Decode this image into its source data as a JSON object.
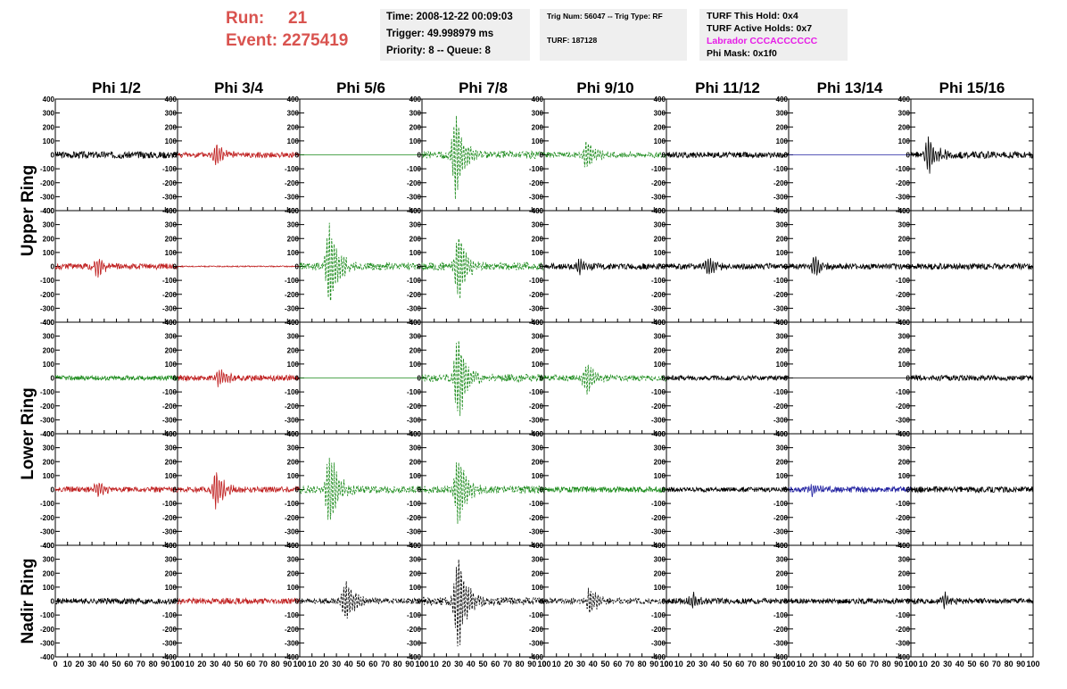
{
  "header": {
    "run_label": "Run:",
    "run_value": "21",
    "event_label": "Event:",
    "event_value": "2275419",
    "time": "Time: 2008-12-22 00:09:03",
    "trigger": "Trigger: 49.998979 ms",
    "priority": "Priority: 8 -- Queue: 8",
    "trig_num": "Trig Num: 56047 -- Trig Type: RF",
    "turf": "TURF: 187128",
    "turf_hold": "TURF This Hold: 0x4",
    "turf_active": "TURF Active Holds: 0x7",
    "labrador": "Labrador CCCACCCCCC",
    "phi_mask": "Phi Mask: 0x1f0",
    "labrador_color": "#e61ce6",
    "run_color": "#d9534f"
  },
  "columns": [
    "Phi 1/2",
    "Phi 3/4",
    "Phi 5/6",
    "Phi 7/8",
    "Phi 9/10",
    "Phi 11/12",
    "Phi 13/14",
    "Phi 15/16"
  ],
  "row_labels": [
    "Upper Ring",
    "Lower Ring",
    "Nadir Ring"
  ],
  "chart_data": {
    "type": "line",
    "description_axes": "8 columns x 5 rows of waveform panels; x = sample 0-100, y = amplitude -400 to 400",
    "xlim": [
      0,
      100
    ],
    "ylim": [
      -400,
      400
    ],
    "x_ticks": [
      0,
      10,
      20,
      30,
      40,
      50,
      60,
      70,
      80,
      90,
      100
    ],
    "x_tick_labels": [
      "0",
      "10",
      "20",
      "30",
      "40",
      "50",
      "60",
      "70",
      "80",
      "90",
      "100"
    ],
    "y_ticks": [
      -400,
      -300,
      -200,
      -100,
      0,
      100,
      200,
      300,
      400
    ],
    "colors": {
      "black": "#000000",
      "red": "#c02020",
      "green": "#1a8a1a",
      "blue": "#2020a0"
    },
    "panels": [
      [
        {
          "color": "black",
          "dash": false,
          "amp": 18,
          "center": null,
          "peak": 0
        },
        {
          "color": "red",
          "dash": false,
          "amp": 14,
          "center": 32,
          "peak": 95
        },
        {
          "color": "green",
          "dash": false,
          "amp": 0,
          "center": null,
          "peak": 0
        },
        {
          "color": "green",
          "dash": true,
          "amp": 20,
          "center": 28,
          "peak": 360
        },
        {
          "color": "green",
          "dash": true,
          "amp": 15,
          "center": 35,
          "peak": 130
        },
        {
          "color": "black",
          "dash": false,
          "amp": 15,
          "center": null,
          "peak": 0
        },
        {
          "color": "blue",
          "dash": false,
          "amp": 0,
          "center": null,
          "peak": 0
        },
        {
          "color": "black",
          "dash": false,
          "amp": 18,
          "center": 15,
          "peak": 140
        }
      ],
      [
        {
          "color": "red",
          "dash": false,
          "amp": 15,
          "center": 35,
          "peak": 75
        },
        {
          "color": "red",
          "dash": false,
          "amp": 3,
          "center": null,
          "peak": 0
        },
        {
          "color": "green",
          "dash": true,
          "amp": 20,
          "center": 25,
          "peak": 360
        },
        {
          "color": "green",
          "dash": true,
          "amp": 20,
          "center": 30,
          "peak": 300
        },
        {
          "color": "black",
          "dash": false,
          "amp": 15,
          "center": 30,
          "peak": 55
        },
        {
          "color": "black",
          "dash": false,
          "amp": 15,
          "center": 35,
          "peak": 75
        },
        {
          "color": "black",
          "dash": false,
          "amp": 15,
          "center": 22,
          "peak": 80
        },
        {
          "color": "black",
          "dash": false,
          "amp": 15,
          "center": null,
          "peak": 0
        }
      ],
      [
        {
          "color": "green",
          "dash": false,
          "amp": 12,
          "center": null,
          "peak": 0
        },
        {
          "color": "red",
          "dash": false,
          "amp": 15,
          "center": 35,
          "peak": 70
        },
        {
          "color": "green",
          "dash": false,
          "amp": 0,
          "center": null,
          "peak": 0
        },
        {
          "color": "green",
          "dash": true,
          "amp": 20,
          "center": 30,
          "peak": 360
        },
        {
          "color": "green",
          "dash": true,
          "amp": 15,
          "center": 35,
          "peak": 130
        },
        {
          "color": "black",
          "dash": false,
          "amp": 12,
          "center": null,
          "peak": 0
        },
        {
          "color": "black",
          "dash": false,
          "amp": 0,
          "center": null,
          "peak": 0
        },
        {
          "color": "black",
          "dash": false,
          "amp": 14,
          "center": null,
          "peak": 0
        }
      ],
      [
        {
          "color": "red",
          "dash": false,
          "amp": 15,
          "center": 35,
          "peak": 55
        },
        {
          "color": "red",
          "dash": false,
          "amp": 15,
          "center": 32,
          "peak": 150
        },
        {
          "color": "green",
          "dash": true,
          "amp": 20,
          "center": 25,
          "peak": 320
        },
        {
          "color": "green",
          "dash": true,
          "amp": 20,
          "center": 30,
          "peak": 300
        },
        {
          "color": "green",
          "dash": false,
          "amp": 15,
          "center": null,
          "peak": 0
        },
        {
          "color": "black",
          "dash": false,
          "amp": 12,
          "center": null,
          "peak": 0
        },
        {
          "color": "blue",
          "dash": false,
          "amp": 15,
          "center": 20,
          "peak": 40
        },
        {
          "color": "black",
          "dash": false,
          "amp": 15,
          "center": null,
          "peak": 0
        }
      ],
      [
        {
          "color": "black",
          "dash": false,
          "amp": 15,
          "center": null,
          "peak": 0
        },
        {
          "color": "red",
          "dash": false,
          "amp": 15,
          "center": null,
          "peak": 0
        },
        {
          "color": "black",
          "dash": true,
          "amp": 15,
          "center": 38,
          "peak": 180
        },
        {
          "color": "black",
          "dash": true,
          "amp": 20,
          "center": 30,
          "peak": 420
        },
        {
          "color": "black",
          "dash": true,
          "amp": 15,
          "center": 38,
          "peak": 120
        },
        {
          "color": "black",
          "dash": false,
          "amp": 15,
          "center": 22,
          "peak": 60
        },
        {
          "color": "black",
          "dash": false,
          "amp": 14,
          "center": null,
          "peak": 0
        },
        {
          "color": "black",
          "dash": false,
          "amp": 14,
          "center": 28,
          "peak": 55
        }
      ]
    ]
  }
}
